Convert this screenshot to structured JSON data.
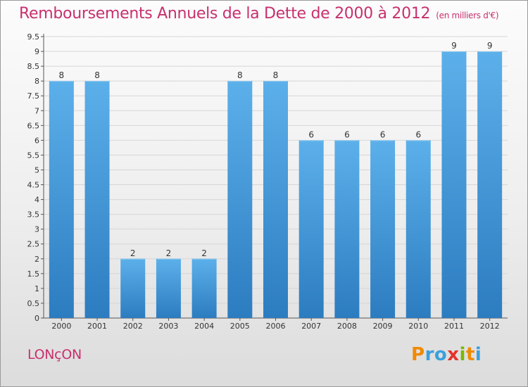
{
  "chart_data": {
    "type": "bar",
    "title": "Remboursements Annuels de la Dette de 2000 à 2012",
    "subtitle": "(en milliers d'€)",
    "categories": [
      "2000",
      "2001",
      "2002",
      "2003",
      "2004",
      "2005",
      "2006",
      "2007",
      "2008",
      "2009",
      "2010",
      "2011",
      "2012"
    ],
    "values": [
      8,
      8,
      2,
      2,
      2,
      8,
      8,
      6,
      6,
      6,
      6,
      9,
      9
    ],
    "data_labels": [
      "8",
      "8",
      "2",
      "2",
      "2",
      "8",
      "8",
      "6",
      "6",
      "6",
      "6",
      "9",
      "9"
    ],
    "y_ticks": [
      0,
      0.5,
      1,
      1.5,
      2,
      2.5,
      3,
      3.5,
      4,
      4.5,
      5,
      5.5,
      6,
      6.5,
      7,
      7.5,
      8,
      8.5,
      9,
      9.5
    ],
    "y_tick_labels": [
      "0",
      "0.5",
      "1",
      "1.5",
      "2",
      "2.5",
      "3",
      "3.5",
      "4",
      "4.5",
      "5",
      "5.5",
      "6",
      "6.5",
      "7",
      "7.5",
      "8",
      "8.5",
      "9",
      "9.5"
    ],
    "ylim": [
      0,
      9.5
    ],
    "xlabel": "",
    "ylabel": "",
    "grid": true,
    "bar_color": "#4a9fdd",
    "bar_color_light": "#5cb0ea",
    "bar_color_dark": "#2c7cc0"
  },
  "footer": {
    "commune": "LONçON",
    "brand_letters": [
      "P",
      "r",
      "o",
      "x",
      "i",
      "t",
      "i"
    ],
    "brand_colors": [
      "#f08a00",
      "#3aa0dc",
      "#3aa0dc",
      "#e6332a",
      "#7ab800",
      "#f08a00",
      "#3aa0dc"
    ]
  },
  "colors": {
    "title": "#c8306e"
  }
}
